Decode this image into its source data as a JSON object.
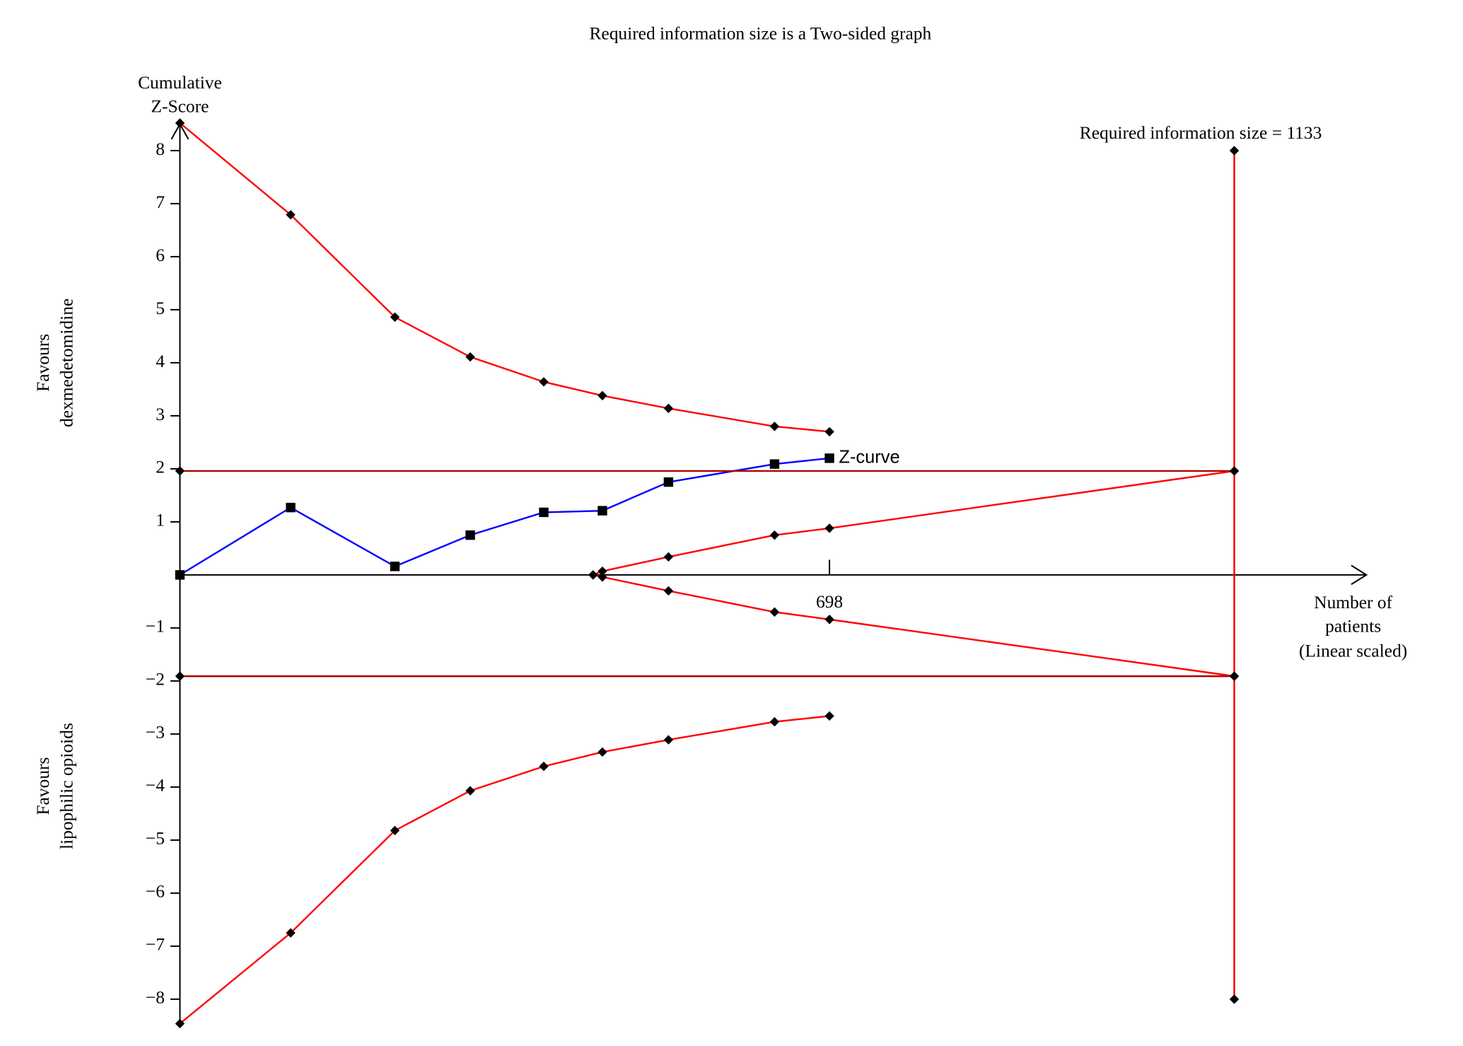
{
  "chart_data": {
    "type": "line",
    "title": "Required information size is a Two-sided graph",
    "y_label": [
      "Cumulative",
      "Z-Score"
    ],
    "x_label": [
      "Number of",
      "patients",
      "(Linear scaled)"
    ],
    "upper_side_label": [
      "Favours",
      "dexmedetomidine"
    ],
    "lower_side_label": [
      "Favours",
      "lipophilic opioids"
    ],
    "annotation": "Required information size = 1133",
    "annotation_color": "#ff0000",
    "xlim": [
      0,
      1275
    ],
    "ylim": [
      -8.5,
      8.5
    ],
    "xticks": [
      698
    ],
    "yticks": [
      8,
      7,
      6,
      5,
      4,
      3,
      2,
      1,
      {
        "value": -1,
        "label": "−1"
      },
      {
        "value": -2,
        "label": "−2"
      },
      {
        "value": -3,
        "label": "−3"
      },
      {
        "value": -4,
        "label": "−4"
      },
      {
        "value": -5,
        "label": "−5"
      },
      {
        "value": -6,
        "label": "−6"
      },
      {
        "value": -7,
        "label": "−7"
      },
      {
        "value": -8,
        "label": "−8"
      }
    ],
    "series": [
      {
        "name": "Z-curve",
        "color": "#0000ff",
        "marker": "square",
        "x": [
          0,
          119,
          231,
          312,
          391,
          454,
          525,
          639,
          698
        ],
        "values": [
          0,
          1.27,
          0.16,
          0.75,
          1.18,
          1.21,
          1.75,
          2.09,
          2.2
        ]
      },
      {
        "color": "#ff0000",
        "marker": "diamond",
        "x": [
          0,
          119,
          231,
          312,
          391,
          454,
          525,
          639,
          698
        ],
        "values": [
          8.52,
          6.79,
          4.86,
          4.11,
          3.64,
          3.38,
          3.14,
          2.8,
          2.7
        ]
      },
      {
        "color": "#ff0000",
        "marker": "diamond",
        "x": [
          0,
          119,
          231,
          312,
          391,
          454,
          525,
          639,
          698
        ],
        "values": [
          -8.46,
          -6.75,
          -4.82,
          -4.07,
          -3.61,
          -3.34,
          -3.11,
          -2.77,
          -2.66
        ]
      },
      {
        "color": "#ff0000",
        "marker": "diamond",
        "x": [
          444,
          454,
          525,
          639,
          698,
          1133
        ],
        "values": [
          0,
          0.07,
          0.34,
          0.75,
          0.88,
          1.96
        ]
      },
      {
        "color": "#ff0000",
        "marker": "diamond",
        "x": [
          444,
          454,
          525,
          639,
          698,
          1133
        ],
        "values": [
          0,
          -0.04,
          -0.3,
          -0.7,
          -0.84,
          -1.91
        ]
      },
      {
        "color": "#b00000",
        "marker": "diamond",
        "x": [
          0,
          1133
        ],
        "values": [
          1.96,
          1.96
        ]
      },
      {
        "color": "#b00000",
        "marker": "diamond",
        "x": [
          0,
          1133
        ],
        "values": [
          -1.91,
          -1.91
        ]
      },
      {
        "color": "#ff0000",
        "marker": "diamond",
        "x": [
          1133,
          1133
        ],
        "values": [
          8,
          -8
        ]
      }
    ]
  }
}
